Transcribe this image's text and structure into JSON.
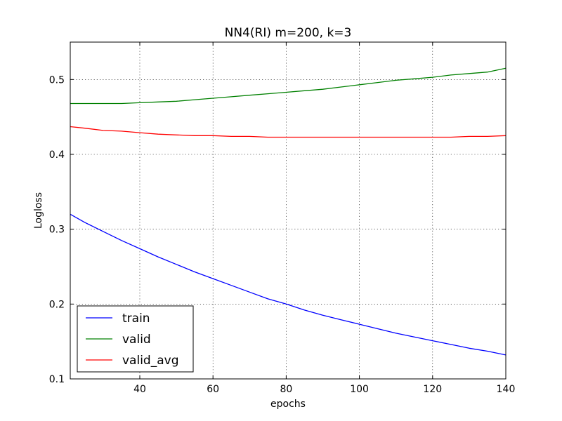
{
  "chart_data": {
    "type": "line",
    "title": "NN4(RI) m=200, k=3",
    "xlabel": "epochs",
    "ylabel": "Logloss",
    "xlim": [
      21,
      140
    ],
    "ylim": [
      0.1,
      0.55
    ],
    "xticks": [
      40,
      60,
      80,
      100,
      120,
      140
    ],
    "yticks": [
      0.1,
      0.2,
      0.3,
      0.4,
      0.5
    ],
    "xtick_labels": [
      "40",
      "60",
      "80",
      "100",
      "120",
      "140"
    ],
    "ytick_labels": [
      "0.1",
      "0.2",
      "0.3",
      "0.4",
      "0.5"
    ],
    "grid": true,
    "legend_position": "lower-left",
    "x": [
      21,
      25,
      30,
      35,
      40,
      45,
      50,
      55,
      60,
      65,
      70,
      75,
      80,
      85,
      90,
      95,
      100,
      105,
      110,
      115,
      120,
      125,
      130,
      135,
      140
    ],
    "series": [
      {
        "name": "train",
        "color": "#0000ff",
        "values": [
          0.32,
          0.309,
          0.297,
          0.285,
          0.274,
          0.263,
          0.253,
          0.243,
          0.234,
          0.225,
          0.216,
          0.207,
          0.2,
          0.192,
          0.185,
          0.179,
          0.173,
          0.167,
          0.161,
          0.156,
          0.151,
          0.146,
          0.141,
          0.137,
          0.132
        ]
      },
      {
        "name": "valid",
        "color": "#008000",
        "values": [
          0.468,
          0.468,
          0.468,
          0.468,
          0.469,
          0.47,
          0.471,
          0.473,
          0.475,
          0.477,
          0.479,
          0.481,
          0.483,
          0.485,
          0.487,
          0.49,
          0.493,
          0.496,
          0.499,
          0.501,
          0.503,
          0.506,
          0.508,
          0.51,
          0.515
        ]
      },
      {
        "name": "valid_avg",
        "color": "#ff0000",
        "values": [
          0.437,
          0.435,
          0.432,
          0.431,
          0.429,
          0.427,
          0.426,
          0.425,
          0.425,
          0.424,
          0.424,
          0.423,
          0.423,
          0.423,
          0.423,
          0.423,
          0.423,
          0.423,
          0.423,
          0.423,
          0.423,
          0.423,
          0.424,
          0.424,
          0.425
        ]
      }
    ]
  }
}
